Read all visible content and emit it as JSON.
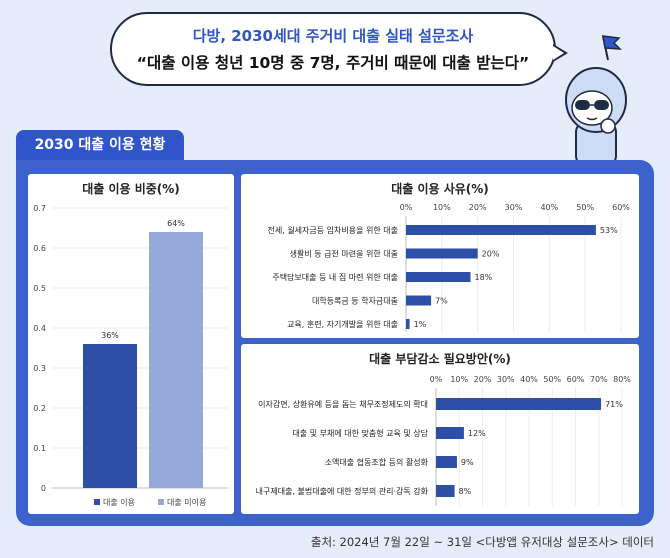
{
  "header": {
    "line1": "다방, 2030세대 주거비 대출 실태 설문조사",
    "line2": "“대출 이용 청년 10명 중 7명, 주거비 때문에 대출 받는다”"
  },
  "section_tab": "2030 대출 이용 현황",
  "footer": "출처: 2024년 7월 22일 ~ 31일 <다방앱 유저대상 설문조사> 데이터",
  "colors": {
    "accent": "#2f55c8",
    "frame": "#3d62cc",
    "bar_dark": "#2d4fa8",
    "bar_light": "#94a8da",
    "background": "#e4edf9"
  },
  "chart_data": [
    {
      "type": "bar",
      "title": "대출 이용 비중(%)",
      "categories": [
        "대출 이용",
        "대출 미이용"
      ],
      "values": [
        0.36,
        0.64
      ],
      "data_labels": [
        "36%",
        "64%"
      ],
      "yticks": [
        "0",
        "0.1",
        "0.2",
        "0.3",
        "0.4",
        "0.5",
        "0.6",
        "0.7"
      ],
      "ylim": [
        0,
        0.7
      ],
      "legend": [
        "대출 이용",
        "대출 미이용"
      ],
      "legend_position": "bottom"
    },
    {
      "type": "bar",
      "orientation": "horizontal",
      "title": "대출 이용 사유(%)",
      "categories": [
        "전세, 월세자금등 임차비용을 위한 대출",
        "생활비 등 급전 마련을 위한 대출",
        "주택담보대출 등 내 집 마련 위한 대출",
        "대학등록금 등 학자금대출",
        "교육, 훈련, 자기개발을 위한 대출"
      ],
      "values": [
        53,
        20,
        18,
        7,
        1
      ],
      "data_labels": [
        "53%",
        "20%",
        "18%",
        "7%",
        "1%"
      ],
      "xticks": [
        "0%",
        "10%",
        "20%",
        "30%",
        "40%",
        "50%",
        "60%"
      ],
      "xlim": [
        0,
        60
      ]
    },
    {
      "type": "bar",
      "orientation": "horizontal",
      "title": "대출 부담감소 필요방안(%)",
      "categories": [
        "이자감면, 상환유예 등을 돕는 채무조정제도의 확대",
        "대출 및 부채에 대한 맞춤형 교육 및 상담",
        "소액대출 협동조합 등의 활성화",
        "내구제대출, 불법대출에 대한 정부의 관리·감독 강화"
      ],
      "values": [
        71,
        12,
        9,
        8
      ],
      "data_labels": [
        "71%",
        "12%",
        "9%",
        "8%"
      ],
      "xticks": [
        "0%",
        "10%",
        "20%",
        "30%",
        "40%",
        "50%",
        "60%",
        "70%",
        "80%"
      ],
      "xlim": [
        0,
        80
      ]
    }
  ]
}
